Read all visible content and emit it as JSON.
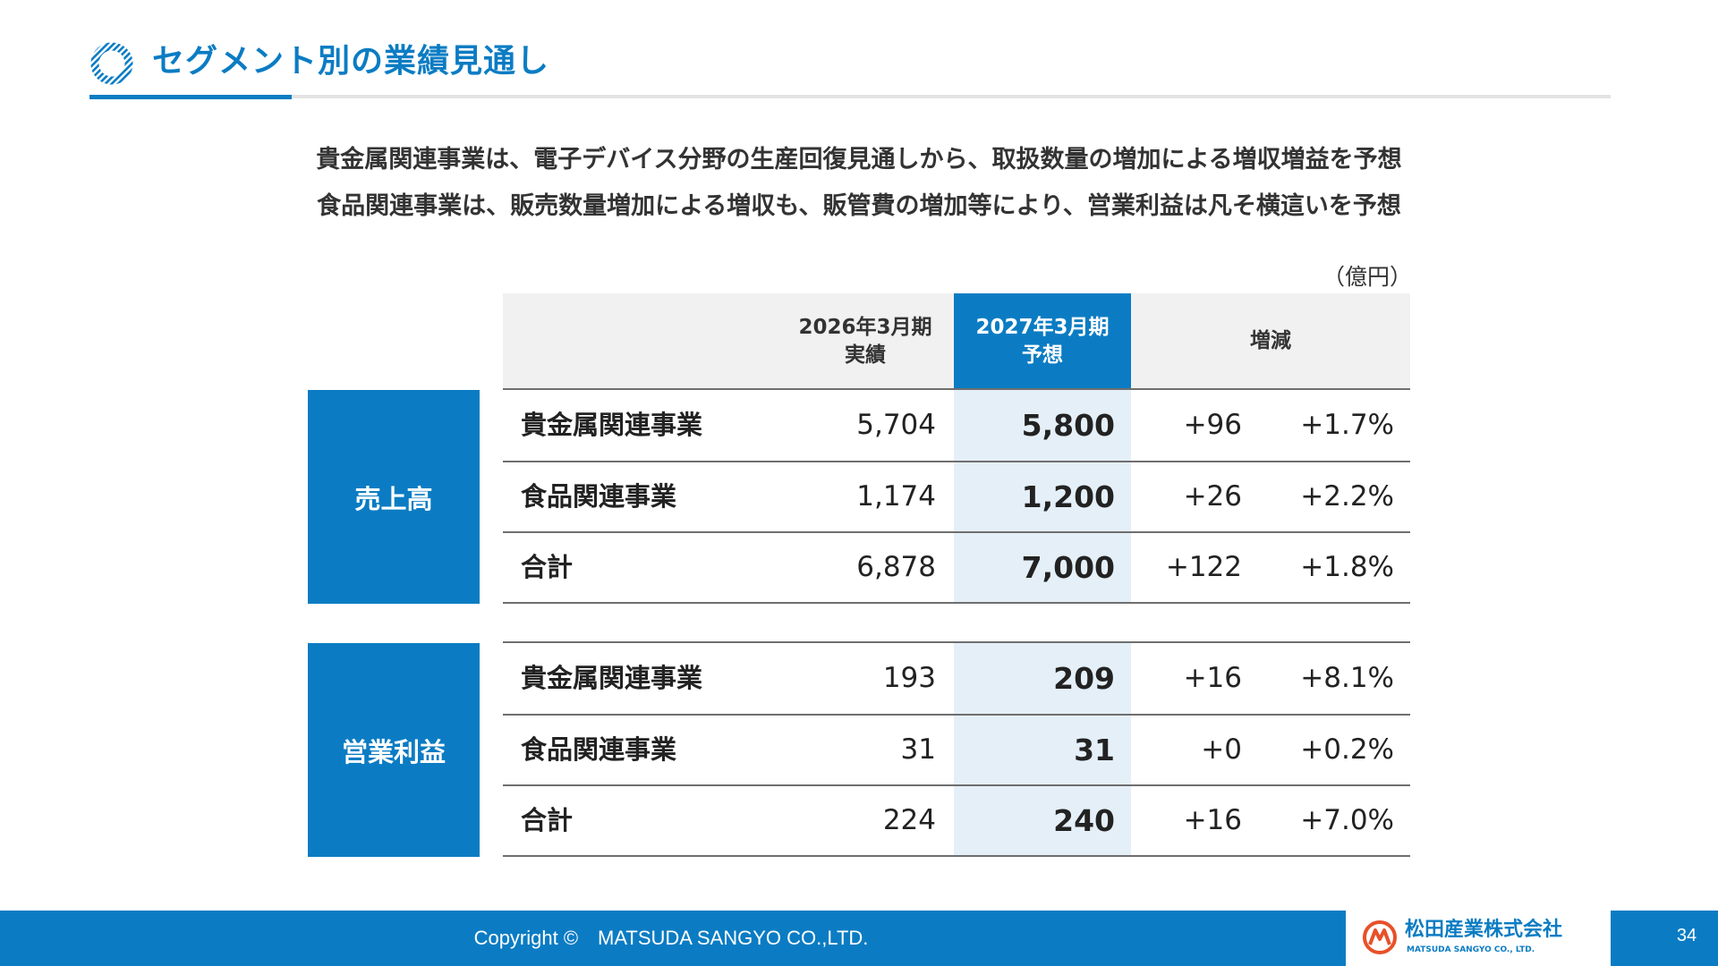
{
  "header": {
    "title": "セグメント別の業績見通し",
    "icon": "ring-icon"
  },
  "lead": {
    "line1": "貴金属関連事業は、電子デバイス分野の生産回復見通しから、取扱数量の増加による増収増益を予想",
    "line2": "食品関連事業は、販売数量増加による増収も、販管費の増加等により、営業利益は凡そ横這いを予想"
  },
  "table": {
    "unit": "（億円）",
    "columns": {
      "prev_line1": "2026年3月期",
      "prev_line2": "実績",
      "fc_line1": "2027年3月期",
      "fc_line2": "予想",
      "diff": "増減"
    },
    "sections": [
      {
        "label": "売上高",
        "rows": [
          {
            "name": "貴金属関連事業",
            "prev": "5,704",
            "forecast": "5,800",
            "diff": "+96",
            "pct": "+1.7%"
          },
          {
            "name": "食品関連事業",
            "prev": "1,174",
            "forecast": "1,200",
            "diff": "+26",
            "pct": "+2.2%"
          },
          {
            "name": "合計",
            "prev": "6,878",
            "forecast": "7,000",
            "diff": "+122",
            "pct": "+1.8%"
          }
        ]
      },
      {
        "label": "営業利益",
        "rows": [
          {
            "name": "貴金属関連事業",
            "prev": "193",
            "forecast": "209",
            "diff": "+16",
            "pct": "+8.1%"
          },
          {
            "name": "食品関連事業",
            "prev": "31",
            "forecast": "31",
            "diff": "+0",
            "pct": "+0.2%"
          },
          {
            "name": "合計",
            "prev": "224",
            "forecast": "240",
            "diff": "+16",
            "pct": "+7.0%"
          }
        ]
      }
    ]
  },
  "footer": {
    "copyright": "Copyright ©　MATSUDA SANGYO CO.,LTD.",
    "logo_jp": "松田産業株式会社",
    "logo_en": "MATSUDA SANGYO CO., LTD.",
    "logo_icon": "matsuda-logo-icon",
    "page_number": "34"
  },
  "colors": {
    "accent": "#0b7cc3",
    "highlight": "#e4eff8",
    "header_bg": "#f1f1f1"
  }
}
